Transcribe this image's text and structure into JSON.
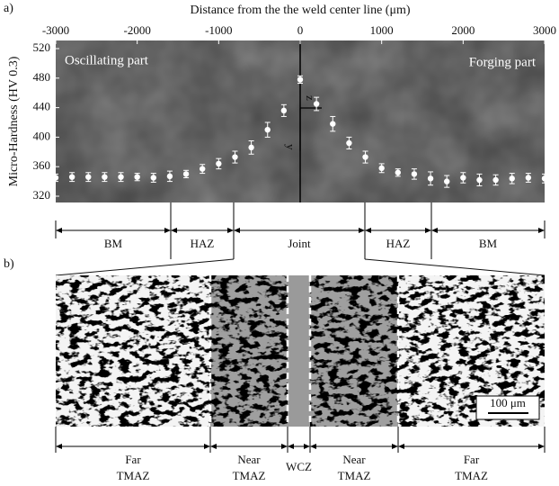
{
  "chart_data": {
    "type": "scatter",
    "title": "Distance from the the weld center line (μm)",
    "y_label": "Micro-Hardness (HV 0.3)",
    "x": [
      -3000,
      -2800,
      -2600,
      -2400,
      -2200,
      -2000,
      -1800,
      -1600,
      -1400,
      -1200,
      -1000,
      -800,
      -600,
      -400,
      -200,
      0,
      200,
      400,
      600,
      800,
      1000,
      1200,
      1400,
      1600,
      1800,
      2000,
      2200,
      2400,
      2600,
      2800,
      3000
    ],
    "values": [
      345,
      346,
      346,
      346,
      346,
      346,
      345,
      347,
      350,
      357,
      364,
      373,
      386,
      410,
      436,
      478,
      445,
      418,
      392,
      373,
      358,
      352,
      350,
      344,
      340,
      345,
      342,
      342,
      344,
      345,
      344
    ],
    "errors": [
      5,
      6,
      6,
      6,
      6,
      5,
      6,
      7,
      5,
      6,
      7,
      8,
      9,
      10,
      8,
      5,
      9,
      10,
      8,
      8,
      6,
      5,
      7,
      9,
      8,
      7,
      8,
      7,
      7,
      6,
      6
    ],
    "color": "#ffffff",
    "xlim": [
      -3000,
      3000
    ],
    "ylim": [
      320,
      520
    ],
    "xticks": [
      -3000,
      -2000,
      -1000,
      0,
      1000,
      2000,
      3000
    ],
    "yticks": [
      320,
      360,
      400,
      440,
      480,
      520
    ],
    "x_axis_position": "top"
  },
  "panel_a": {
    "label": "a)",
    "annotations": [
      "Oscillating part",
      "Forging part"
    ],
    "frame_labels": [
      "z",
      "y"
    ],
    "zones": [
      "BM",
      "HAZ",
      "Joint",
      "HAZ",
      "BM"
    ]
  },
  "panel_b": {
    "label": "b)",
    "scale_bar": "100 μm",
    "zones": [
      [
        "Far",
        "TMAZ"
      ],
      [
        "Near",
        "TMAZ"
      ],
      [
        "WCZ"
      ],
      [
        "Near",
        "TMAZ"
      ],
      [
        "Far",
        "TMAZ"
      ]
    ]
  }
}
